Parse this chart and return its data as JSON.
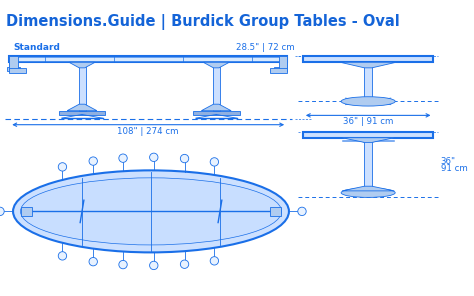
{
  "title": "Dimensions.Guide | Burdick Group Tables - Oval",
  "title_color": "#1464d8",
  "bg_color": "#ffffff",
  "line_color": "#1a6fe8",
  "fill_light": "#cce0ff",
  "fill_mid": "#b0ccf0",
  "fill_dark": "#90b0e0",
  "label_standard": "Standard",
  "label_height_top": "28.5\" | 72 cm",
  "label_width": "108\" | 274 cm",
  "label_side_width": "36\" | 91 cm",
  "label_side_height1": "36\"",
  "label_side_height2": "91 cm",
  "title_fontsize": 10.5,
  "small_fontsize": 6.2
}
